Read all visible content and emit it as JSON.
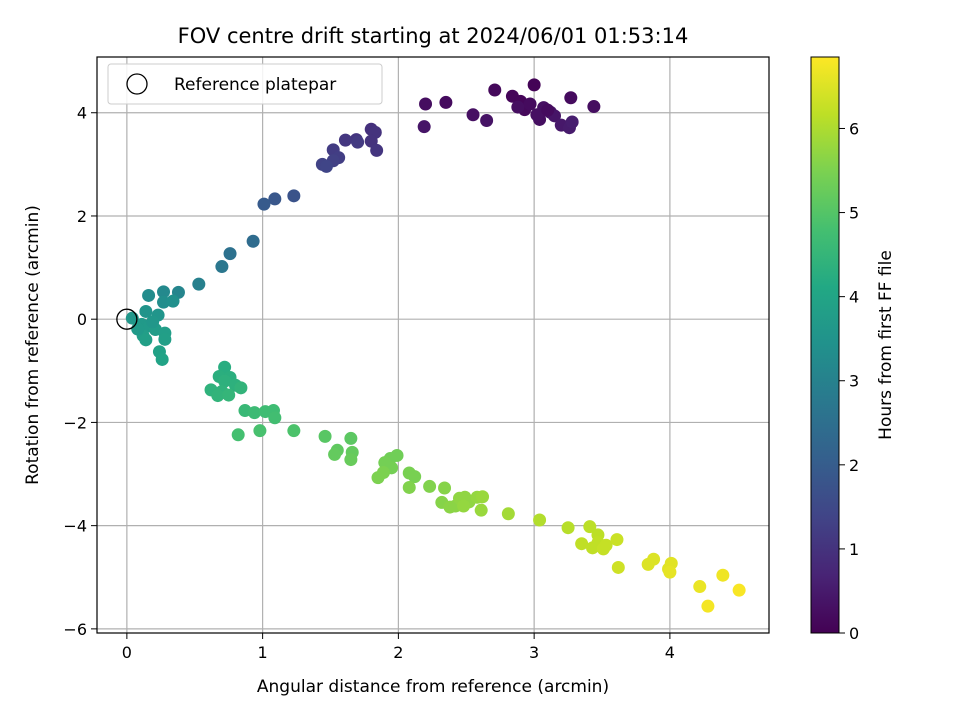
{
  "chart_data": {
    "type": "scatter",
    "title": "FOV centre drift starting at 2024/06/01 01:53:14",
    "xlabel": "Angular distance from reference (arcmin)",
    "ylabel": "Rotation from reference (arcmin)",
    "colorbar_label": "Hours from first FF file",
    "xlim": [
      -0.22,
      4.73
    ],
    "ylim": [
      -6.08,
      5.08
    ],
    "xticks": [
      0,
      1,
      2,
      3,
      4
    ],
    "yticks": [
      -6,
      -4,
      -2,
      0,
      2,
      4
    ],
    "xtick_labels": [
      "0",
      "1",
      "2",
      "3",
      "4"
    ],
    "ytick_labels": [
      "−6",
      "−4",
      "−2",
      "0",
      "2",
      "4"
    ],
    "colorbar_range": [
      0,
      6.85
    ],
    "colorbar_ticks": [
      0,
      1,
      2,
      3,
      4,
      5,
      6
    ],
    "colorbar_tick_labels": [
      "0",
      "1",
      "2",
      "3",
      "4",
      "5",
      "6"
    ],
    "colormap": "viridis",
    "grid": true,
    "legend": {
      "placement": "top-left",
      "entries": [
        "Reference platepar"
      ]
    },
    "reference_point": {
      "x": 0,
      "y": 0
    },
    "points": [
      {
        "x": 2.2,
        "y": 4.17,
        "t": 0.25
      },
      {
        "x": 2.35,
        "y": 4.2,
        "t": 0.2
      },
      {
        "x": 2.71,
        "y": 4.44,
        "t": 0.15
      },
      {
        "x": 2.84,
        "y": 4.32,
        "t": 0.1
      },
      {
        "x": 3.0,
        "y": 4.54,
        "t": 0.05
      },
      {
        "x": 3.27,
        "y": 4.29,
        "t": 0.2
      },
      {
        "x": 3.44,
        "y": 4.12,
        "t": 0.25
      },
      {
        "x": 2.55,
        "y": 3.96,
        "t": 0.3
      },
      {
        "x": 2.65,
        "y": 3.85,
        "t": 0.35
      },
      {
        "x": 2.19,
        "y": 3.73,
        "t": 0.4
      },
      {
        "x": 2.9,
        "y": 4.22,
        "t": 0.1
      },
      {
        "x": 2.93,
        "y": 4.06,
        "t": 0.15
      },
      {
        "x": 2.97,
        "y": 4.17,
        "t": 0.2
      },
      {
        "x": 3.04,
        "y": 3.87,
        "t": 0.25
      },
      {
        "x": 3.07,
        "y": 4.1,
        "t": 0.3
      },
      {
        "x": 3.12,
        "y": 4.01,
        "t": 0.35
      },
      {
        "x": 3.15,
        "y": 3.94,
        "t": 0.4
      },
      {
        "x": 3.2,
        "y": 3.76,
        "t": 0.45
      },
      {
        "x": 3.26,
        "y": 3.71,
        "t": 0.5
      },
      {
        "x": 3.28,
        "y": 3.82,
        "t": 0.55
      },
      {
        "x": 3.02,
        "y": 3.96,
        "t": 0.3
      },
      {
        "x": 3.1,
        "y": 4.05,
        "t": 0.2
      },
      {
        "x": 2.88,
        "y": 4.11,
        "t": 0.25
      },
      {
        "x": 1.8,
        "y": 3.68,
        "t": 0.95
      },
      {
        "x": 1.83,
        "y": 3.62,
        "t": 1.0
      },
      {
        "x": 1.69,
        "y": 3.48,
        "t": 1.05
      },
      {
        "x": 1.61,
        "y": 3.47,
        "t": 1.1
      },
      {
        "x": 1.8,
        "y": 3.45,
        "t": 1.0
      },
      {
        "x": 1.84,
        "y": 3.27,
        "t": 1.05
      },
      {
        "x": 1.52,
        "y": 3.28,
        "t": 1.2
      },
      {
        "x": 1.56,
        "y": 3.13,
        "t": 1.25
      },
      {
        "x": 1.52,
        "y": 3.07,
        "t": 1.3
      },
      {
        "x": 1.44,
        "y": 3.0,
        "t": 1.35
      },
      {
        "x": 1.47,
        "y": 2.96,
        "t": 1.4
      },
      {
        "x": 1.7,
        "y": 3.43,
        "t": 1.15
      },
      {
        "x": 1.23,
        "y": 2.39,
        "t": 1.75
      },
      {
        "x": 1.09,
        "y": 2.33,
        "t": 1.85
      },
      {
        "x": 1.01,
        "y": 2.23,
        "t": 1.95
      },
      {
        "x": 0.93,
        "y": 1.51,
        "t": 2.4
      },
      {
        "x": 0.76,
        "y": 1.27,
        "t": 2.55
      },
      {
        "x": 0.7,
        "y": 1.02,
        "t": 2.7
      },
      {
        "x": 0.53,
        "y": 0.68,
        "t": 2.95
      },
      {
        "x": 0.38,
        "y": 0.52,
        "t": 3.1
      },
      {
        "x": 0.27,
        "y": 0.53,
        "t": 3.2
      },
      {
        "x": 0.16,
        "y": 0.46,
        "t": 3.3
      },
      {
        "x": 0.27,
        "y": 0.33,
        "t": 3.35
      },
      {
        "x": 0.34,
        "y": 0.35,
        "t": 3.4
      },
      {
        "x": 0.14,
        "y": 0.15,
        "t": 3.5
      },
      {
        "x": 0.23,
        "y": 0.08,
        "t": 3.55
      },
      {
        "x": 0.04,
        "y": 0.02,
        "t": 3.6
      },
      {
        "x": 0.11,
        "y": -0.1,
        "t": 3.65
      },
      {
        "x": 0.17,
        "y": -0.13,
        "t": 3.7
      },
      {
        "x": 0.21,
        "y": -0.2,
        "t": 3.75
      },
      {
        "x": 0.12,
        "y": -0.32,
        "t": 3.8
      },
      {
        "x": 0.14,
        "y": -0.4,
        "t": 3.85
      },
      {
        "x": 0.28,
        "y": -0.27,
        "t": 3.8
      },
      {
        "x": 0.28,
        "y": -0.39,
        "t": 3.85
      },
      {
        "x": 0.24,
        "y": -0.63,
        "t": 3.9
      },
      {
        "x": 0.26,
        "y": -0.78,
        "t": 3.95
      },
      {
        "x": 0.08,
        "y": -0.19,
        "t": 3.7
      },
      {
        "x": 0.19,
        "y": -0.05,
        "t": 3.6
      },
      {
        "x": 0.72,
        "y": -0.93,
        "t": 4.25
      },
      {
        "x": 0.68,
        "y": -1.11,
        "t": 4.3
      },
      {
        "x": 0.76,
        "y": -1.13,
        "t": 4.3
      },
      {
        "x": 0.72,
        "y": -1.2,
        "t": 4.35
      },
      {
        "x": 0.8,
        "y": -1.28,
        "t": 4.35
      },
      {
        "x": 0.62,
        "y": -1.37,
        "t": 4.4
      },
      {
        "x": 0.7,
        "y": -1.4,
        "t": 4.4
      },
      {
        "x": 0.84,
        "y": -1.33,
        "t": 4.45
      },
      {
        "x": 0.67,
        "y": -1.48,
        "t": 4.45
      },
      {
        "x": 0.75,
        "y": -1.47,
        "t": 4.5
      },
      {
        "x": 0.87,
        "y": -1.77,
        "t": 4.6
      },
      {
        "x": 0.94,
        "y": -1.81,
        "t": 4.65
      },
      {
        "x": 1.02,
        "y": -1.79,
        "t": 4.7
      },
      {
        "x": 1.08,
        "y": -1.77,
        "t": 4.7
      },
      {
        "x": 1.09,
        "y": -1.91,
        "t": 4.75
      },
      {
        "x": 0.82,
        "y": -2.24,
        "t": 4.8
      },
      {
        "x": 0.98,
        "y": -2.16,
        "t": 4.85
      },
      {
        "x": 1.23,
        "y": -2.16,
        "t": 4.9
      },
      {
        "x": 1.46,
        "y": -2.27,
        "t": 5.05
      },
      {
        "x": 1.65,
        "y": -2.31,
        "t": 5.1
      },
      {
        "x": 1.55,
        "y": -2.54,
        "t": 5.15
      },
      {
        "x": 1.53,
        "y": -2.62,
        "t": 5.2
      },
      {
        "x": 1.66,
        "y": -2.58,
        "t": 5.2
      },
      {
        "x": 1.65,
        "y": -2.72,
        "t": 5.25
      },
      {
        "x": 1.99,
        "y": -2.64,
        "t": 5.35
      },
      {
        "x": 1.94,
        "y": -2.7,
        "t": 5.35
      },
      {
        "x": 1.9,
        "y": -2.78,
        "t": 5.4
      },
      {
        "x": 1.95,
        "y": -2.88,
        "t": 5.4
      },
      {
        "x": 2.08,
        "y": -2.98,
        "t": 5.45
      },
      {
        "x": 2.12,
        "y": -3.05,
        "t": 5.45
      },
      {
        "x": 1.89,
        "y": -2.97,
        "t": 5.5
      },
      {
        "x": 1.85,
        "y": -3.07,
        "t": 5.5
      },
      {
        "x": 2.08,
        "y": -3.26,
        "t": 5.55
      },
      {
        "x": 2.23,
        "y": -3.24,
        "t": 5.55
      },
      {
        "x": 2.34,
        "y": -3.27,
        "t": 5.6
      },
      {
        "x": 2.32,
        "y": -3.55,
        "t": 5.6
      },
      {
        "x": 2.38,
        "y": -3.64,
        "t": 5.65
      },
      {
        "x": 2.42,
        "y": -3.62,
        "t": 5.65
      },
      {
        "x": 2.45,
        "y": -3.47,
        "t": 5.7
      },
      {
        "x": 2.49,
        "y": -3.45,
        "t": 5.7
      },
      {
        "x": 2.52,
        "y": -3.54,
        "t": 5.7
      },
      {
        "x": 2.48,
        "y": -3.62,
        "t": 5.75
      },
      {
        "x": 2.58,
        "y": -3.45,
        "t": 5.75
      },
      {
        "x": 2.62,
        "y": -3.44,
        "t": 5.8
      },
      {
        "x": 2.61,
        "y": -3.7,
        "t": 5.8
      },
      {
        "x": 2.81,
        "y": -3.77,
        "t": 5.9
      },
      {
        "x": 3.04,
        "y": -3.89,
        "t": 6.05
      },
      {
        "x": 3.25,
        "y": -4.04,
        "t": 6.1
      },
      {
        "x": 3.41,
        "y": -4.02,
        "t": 6.15
      },
      {
        "x": 3.47,
        "y": -4.18,
        "t": 6.15
      },
      {
        "x": 3.35,
        "y": -4.35,
        "t": 6.2
      },
      {
        "x": 3.43,
        "y": -4.43,
        "t": 6.2
      },
      {
        "x": 3.47,
        "y": -4.33,
        "t": 6.2
      },
      {
        "x": 3.51,
        "y": -4.45,
        "t": 6.25
      },
      {
        "x": 3.53,
        "y": -4.38,
        "t": 6.25
      },
      {
        "x": 3.61,
        "y": -4.27,
        "t": 6.3
      },
      {
        "x": 3.62,
        "y": -4.81,
        "t": 6.35
      },
      {
        "x": 3.88,
        "y": -4.65,
        "t": 6.5
      },
      {
        "x": 3.84,
        "y": -4.75,
        "t": 6.5
      },
      {
        "x": 4.01,
        "y": -4.73,
        "t": 6.55
      },
      {
        "x": 3.99,
        "y": -4.84,
        "t": 6.55
      },
      {
        "x": 4.0,
        "y": -4.9,
        "t": 6.6
      },
      {
        "x": 4.22,
        "y": -5.18,
        "t": 6.65
      },
      {
        "x": 4.39,
        "y": -4.96,
        "t": 6.7
      },
      {
        "x": 4.28,
        "y": -5.56,
        "t": 6.75
      },
      {
        "x": 4.51,
        "y": -5.25,
        "t": 6.8
      }
    ]
  }
}
